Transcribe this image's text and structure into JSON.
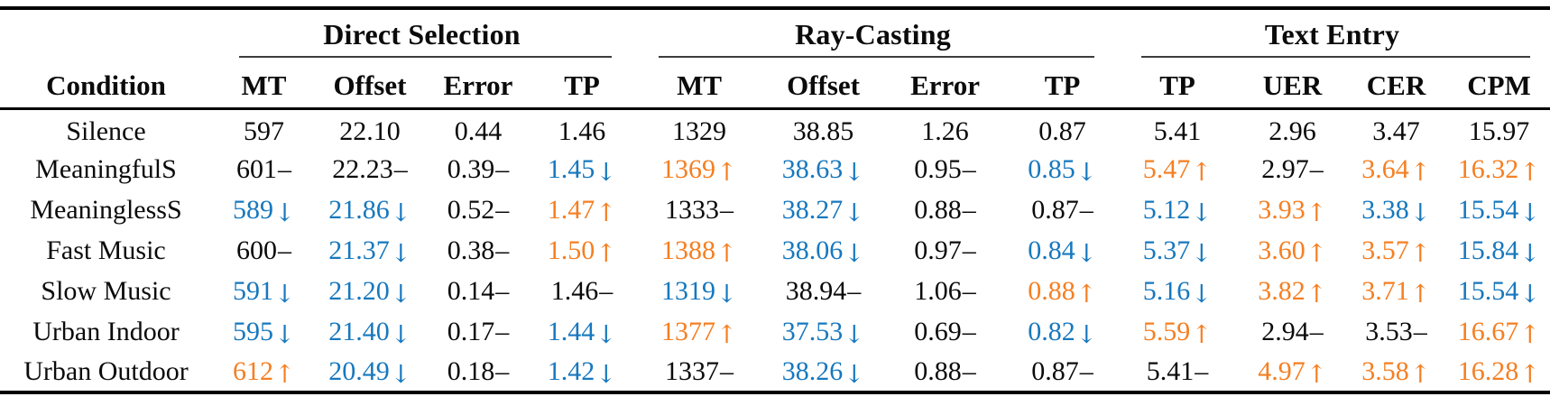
{
  "colors": {
    "increase": "#f57f22",
    "decrease": "#1778be",
    "neutral": "#0b0b0b"
  },
  "trend_glyphs": {
    "up": "↑",
    "down": "↓",
    "same": "–"
  },
  "table": {
    "condition_header": "Condition",
    "groups": [
      {
        "label": "Direct Selection",
        "span": 4
      },
      {
        "label": "Ray-Casting",
        "span": 4
      },
      {
        "label": "Text Entry",
        "span": 4
      }
    ],
    "columns": [
      "MT",
      "Offset",
      "Error",
      "TP",
      "MT",
      "Offset",
      "Error",
      "TP",
      "TP",
      "UER",
      "CER",
      "CPM"
    ],
    "rows": [
      {
        "condition": "Silence",
        "cells": [
          {
            "v": "597",
            "t": "none"
          },
          {
            "v": "22.10",
            "t": "none"
          },
          {
            "v": "0.44",
            "t": "none"
          },
          {
            "v": "1.46",
            "t": "none"
          },
          {
            "v": "1329",
            "t": "none"
          },
          {
            "v": "38.85",
            "t": "none"
          },
          {
            "v": "1.26",
            "t": "none"
          },
          {
            "v": "0.87",
            "t": "none"
          },
          {
            "v": "5.41",
            "t": "none"
          },
          {
            "v": "2.96",
            "t": "none"
          },
          {
            "v": "3.47",
            "t": "none"
          },
          {
            "v": "15.97",
            "t": "none"
          }
        ]
      },
      {
        "condition": "MeaningfulS",
        "cells": [
          {
            "v": "601",
            "t": "same"
          },
          {
            "v": "22.23",
            "t": "same"
          },
          {
            "v": "0.39",
            "t": "same"
          },
          {
            "v": "1.45",
            "t": "down"
          },
          {
            "v": "1369",
            "t": "up"
          },
          {
            "v": "38.63",
            "t": "down"
          },
          {
            "v": "0.95",
            "t": "same"
          },
          {
            "v": "0.85",
            "t": "down"
          },
          {
            "v": "5.47",
            "t": "up"
          },
          {
            "v": "2.97",
            "t": "same"
          },
          {
            "v": "3.64",
            "t": "up"
          },
          {
            "v": "16.32",
            "t": "up"
          }
        ]
      },
      {
        "condition": "MeaninglessS",
        "cells": [
          {
            "v": "589",
            "t": "down"
          },
          {
            "v": "21.86",
            "t": "down"
          },
          {
            "v": "0.52",
            "t": "same"
          },
          {
            "v": "1.47",
            "t": "up"
          },
          {
            "v": "1333",
            "t": "same"
          },
          {
            "v": "38.27",
            "t": "down"
          },
          {
            "v": "0.88",
            "t": "same"
          },
          {
            "v": "0.87",
            "t": "same"
          },
          {
            "v": "5.12",
            "t": "down"
          },
          {
            "v": "3.93",
            "t": "up"
          },
          {
            "v": "3.38",
            "t": "down"
          },
          {
            "v": "15.54",
            "t": "down"
          }
        ]
      },
      {
        "condition": "Fast Music",
        "cells": [
          {
            "v": "600",
            "t": "same"
          },
          {
            "v": "21.37",
            "t": "down"
          },
          {
            "v": "0.38",
            "t": "same"
          },
          {
            "v": "1.50",
            "t": "up"
          },
          {
            "v": "1388",
            "t": "up"
          },
          {
            "v": "38.06",
            "t": "down"
          },
          {
            "v": "0.97",
            "t": "same"
          },
          {
            "v": "0.84",
            "t": "down"
          },
          {
            "v": "5.37",
            "t": "down"
          },
          {
            "v": "3.60",
            "t": "up"
          },
          {
            "v": "3.57",
            "t": "up"
          },
          {
            "v": "15.84",
            "t": "down"
          }
        ]
      },
      {
        "condition": "Slow Music",
        "cells": [
          {
            "v": "591",
            "t": "down"
          },
          {
            "v": "21.20",
            "t": "down"
          },
          {
            "v": "0.14",
            "t": "same"
          },
          {
            "v": "1.46",
            "t": "same"
          },
          {
            "v": "1319",
            "t": "down"
          },
          {
            "v": "38.94",
            "t": "same"
          },
          {
            "v": "1.06",
            "t": "same"
          },
          {
            "v": "0.88",
            "t": "up"
          },
          {
            "v": "5.16",
            "t": "down"
          },
          {
            "v": "3.82",
            "t": "up"
          },
          {
            "v": "3.71",
            "t": "up"
          },
          {
            "v": "15.54",
            "t": "down"
          }
        ]
      },
      {
        "condition": "Urban Indoor",
        "cells": [
          {
            "v": "595",
            "t": "down"
          },
          {
            "v": "21.40",
            "t": "down"
          },
          {
            "v": "0.17",
            "t": "same"
          },
          {
            "v": "1.44",
            "t": "down"
          },
          {
            "v": "1377",
            "t": "up"
          },
          {
            "v": "37.53",
            "t": "down"
          },
          {
            "v": "0.69",
            "t": "same"
          },
          {
            "v": "0.82",
            "t": "down"
          },
          {
            "v": "5.59",
            "t": "up"
          },
          {
            "v": "2.94",
            "t": "same"
          },
          {
            "v": "3.53",
            "t": "same"
          },
          {
            "v": "16.67",
            "t": "up"
          }
        ]
      },
      {
        "condition": "Urban Outdoor",
        "cells": [
          {
            "v": "612",
            "t": "up"
          },
          {
            "v": "20.49",
            "t": "down"
          },
          {
            "v": "0.18",
            "t": "same"
          },
          {
            "v": "1.42",
            "t": "down"
          },
          {
            "v": "1337",
            "t": "same"
          },
          {
            "v": "38.26",
            "t": "down"
          },
          {
            "v": "0.88",
            "t": "same"
          },
          {
            "v": "0.87",
            "t": "same"
          },
          {
            "v": "5.41",
            "t": "same"
          },
          {
            "v": "4.97",
            "t": "up"
          },
          {
            "v": "3.58",
            "t": "up"
          },
          {
            "v": "16.28",
            "t": "up"
          }
        ]
      }
    ]
  }
}
